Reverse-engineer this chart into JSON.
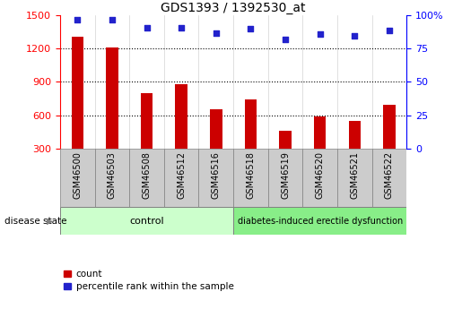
{
  "title": "GDS1393 / 1392530_at",
  "samples": [
    "GSM46500",
    "GSM46503",
    "GSM46508",
    "GSM46512",
    "GSM46516",
    "GSM46518",
    "GSM46519",
    "GSM46520",
    "GSM46521",
    "GSM46522"
  ],
  "counts": [
    1310,
    1210,
    800,
    880,
    650,
    740,
    460,
    590,
    545,
    690
  ],
  "percentiles": [
    97,
    97,
    91,
    91,
    87,
    90,
    82,
    86,
    85,
    89
  ],
  "ylim_left": [
    300,
    1500
  ],
  "ylim_right": [
    0,
    100
  ],
  "yticks_left": [
    300,
    600,
    900,
    1200,
    1500
  ],
  "yticks_right": [
    0,
    25,
    50,
    75,
    100
  ],
  "grid_yticks": [
    600,
    900,
    1200
  ],
  "bar_color": "#cc0000",
  "dot_color": "#2222cc",
  "n_control": 5,
  "n_disease": 5,
  "control_label": "control",
  "disease_label": "diabetes-induced erectile dysfunction",
  "disease_state_label": "disease state",
  "legend_count": "count",
  "legend_percentile": "percentile rank within the sample",
  "control_color": "#ccffcc",
  "disease_color": "#88ee88",
  "tick_bg_color": "#cccccc",
  "bg_color": "#ffffff"
}
